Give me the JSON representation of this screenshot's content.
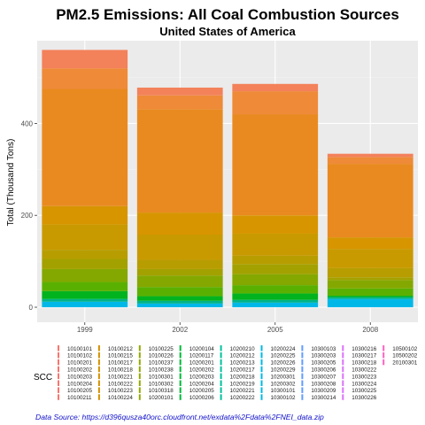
{
  "chart_data": {
    "type": "bar",
    "stacked": true,
    "title": "PM2.5 Emissions: All Coal Combustion Sources",
    "subtitle": "United States of America",
    "xlabel": "",
    "ylabel": "Total (Thousand Tons)",
    "categories": [
      "1999",
      "2002",
      "2005",
      "2008"
    ],
    "ylim": [
      0,
      580
    ],
    "yticks": [
      0,
      200,
      400
    ],
    "grid": true,
    "legend_title": "SCC",
    "legend_position": "bottom",
    "totals": [
      560,
      478,
      486,
      334
    ],
    "segments": [
      {
        "label": "cyan-blue",
        "color": "#00b8e8",
        "values": [
          12,
          8,
          10,
          18
        ]
      },
      {
        "label": "teal",
        "color": "#00b38a",
        "values": [
          6,
          6,
          6,
          4
        ]
      },
      {
        "label": "green",
        "color": "#00b31f",
        "values": [
          17,
          10,
          14,
          3
        ]
      },
      {
        "label": "lime",
        "color": "#5ab000",
        "values": [
          20,
          20,
          18,
          16
        ]
      },
      {
        "label": "olive-1",
        "color": "#84a800",
        "values": [
          28,
          25,
          24,
          18
        ]
      },
      {
        "label": "olive-2",
        "color": "#a3a100",
        "values": [
          22,
          14,
          22,
          6
        ]
      },
      {
        "label": "khaki",
        "color": "#b79d00",
        "values": [
          20,
          20,
          18,
          20
        ]
      },
      {
        "label": "gold-1",
        "color": "#c89a00",
        "values": [
          55,
          55,
          48,
          42
        ]
      },
      {
        "label": "gold-2",
        "color": "#d79500",
        "values": [
          40,
          48,
          40,
          25
        ]
      },
      {
        "label": "orange-1",
        "color": "#e98a20",
        "values": [
          255,
          225,
          220,
          160
        ]
      },
      {
        "label": "orange-2",
        "color": "#ee8a38",
        "values": [
          45,
          30,
          50,
          15
        ]
      },
      {
        "label": "salmon",
        "color": "#f3815a",
        "values": [
          40,
          17,
          16,
          7
        ]
      }
    ],
    "legend_columns": [
      {
        "color": "#f8766d",
        "codes": [
          "10100101",
          "10100102",
          "10100201",
          "10100202",
          "10100203",
          "10100204",
          "10100205",
          "10100211"
        ]
      },
      {
        "color": "#d39200",
        "codes": [
          "10100212",
          "10100215",
          "10100217",
          "10100218",
          "10100221",
          "10100222",
          "10100223",
          "10100224"
        ]
      },
      {
        "color": "#93aa00",
        "codes": [
          "10100225",
          "10100226",
          "10100237",
          "10100238",
          "10100301",
          "10100302",
          "10100318",
          "10200101"
        ]
      },
      {
        "color": "#00ba38",
        "codes": [
          "10200104",
          "10200117",
          "10200201",
          "10200202",
          "10200203",
          "10200204",
          "10200205",
          "10200206"
        ]
      },
      {
        "color": "#00c19f",
        "codes": [
          "10200210",
          "10200212",
          "10200213",
          "10200217",
          "10200218",
          "10200219",
          "10200221",
          "10200222"
        ]
      },
      {
        "color": "#00b9e3",
        "codes": [
          "10200224",
          "10200225",
          "10200226",
          "10200229",
          "10200301",
          "10200302",
          "10300101",
          "10300102"
        ]
      },
      {
        "color": "#619cff",
        "codes": [
          "10300103",
          "10300203",
          "10300205",
          "10300206",
          "10300207",
          "10300208",
          "10300209",
          "10300214"
        ]
      },
      {
        "color": "#db72fb",
        "codes": [
          "10300216",
          "10300217",
          "10300218",
          "10300222",
          "10300223",
          "10300224",
          "10300225",
          "10300226"
        ]
      },
      {
        "color": "#ff61c3",
        "codes": [
          "10500102",
          "10500202",
          "20100301"
        ]
      }
    ],
    "source": "Data Source: https://d396qusza40orc.cloudfront.net/exdata%2Fdata%2FNEI_data.zip"
  }
}
